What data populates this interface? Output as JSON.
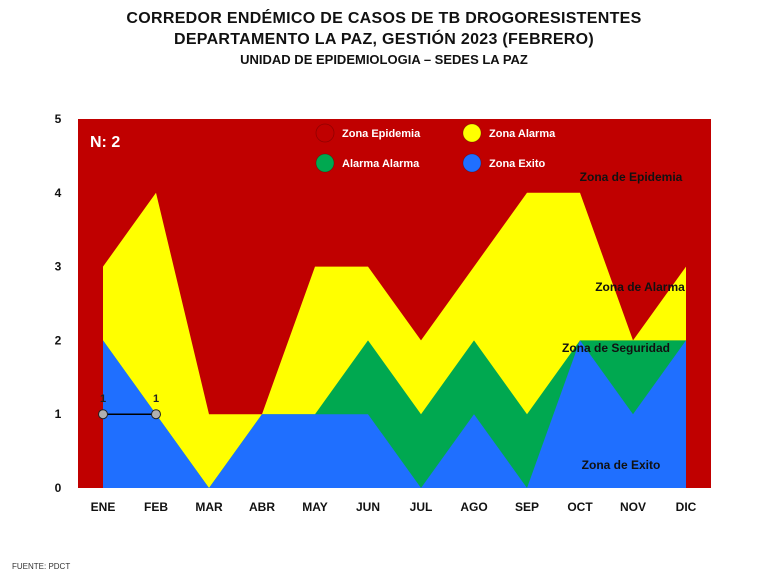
{
  "header": {
    "title_line1": "CORREDOR ENDÉMICO DE CASOS DE TB DROGORESISTENTES",
    "title_line2": "DEPARTAMENTO  LA PAZ, GESTIÓN 2023 (FEBRERO)",
    "subtitle": "UNIDAD DE EPIDEMIOLOGIA – SEDES LA PAZ"
  },
  "footer": {
    "source": "FUENTE:  PDCT"
  },
  "colors": {
    "epidemia": "#c00000",
    "alarma": "#ffff00",
    "seguridad": "#00a850",
    "exito": "#1f6fff"
  },
  "chart_data": {
    "type": "area",
    "categories": [
      "ENE",
      "FEB",
      "MAR",
      "ABR",
      "MAY",
      "JUN",
      "JUL",
      "AGO",
      "SEP",
      "OCT",
      "NOV",
      "DIC"
    ],
    "ylim": [
      0,
      5
    ],
    "yticks": [
      "0",
      "1",
      "2",
      "3",
      "4",
      "5"
    ],
    "grid": false,
    "series": [
      {
        "name": "Zona Exito",
        "values": [
          2,
          1,
          0,
          1,
          1,
          1,
          0,
          1,
          0,
          2,
          1,
          2
        ]
      },
      {
        "name": "Zona de Seguridad",
        "values": [
          2,
          1,
          0,
          1,
          1,
          2,
          1,
          2,
          1,
          2,
          2,
          2
        ]
      },
      {
        "name": "Zona de Alarma",
        "values": [
          3,
          4,
          1,
          1,
          3,
          3,
          2,
          3,
          4,
          4,
          2,
          3
        ]
      },
      {
        "name": "Zona de Epidemia",
        "values": [
          5,
          5,
          5,
          5,
          5,
          5,
          5,
          5,
          5,
          5,
          5,
          5
        ]
      }
    ],
    "cases": {
      "x": [
        "ENE",
        "FEB"
      ],
      "values": [
        1,
        1
      ],
      "labels": [
        "1",
        "1"
      ]
    },
    "n_label": "N: 2",
    "legend": [
      {
        "label": "Zona Epidemia",
        "color": "#c00000"
      },
      {
        "label": "Zona  Alarma",
        "color": "#ffff00"
      },
      {
        "label": "Alarma  Alarma",
        "color": "#00a850"
      },
      {
        "label": "Zona Exito",
        "color": "#1f6fff"
      }
    ],
    "zone_labels": [
      "Zona de Epidemia",
      "Zona de Alarma",
      "Zona de Seguridad",
      "Zona de Exito"
    ]
  }
}
